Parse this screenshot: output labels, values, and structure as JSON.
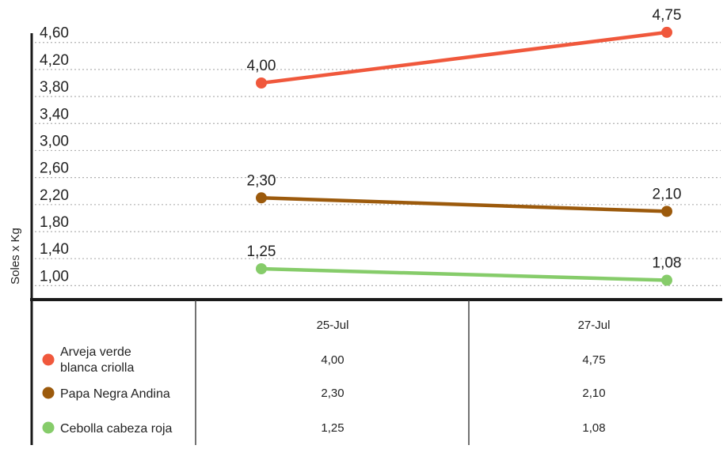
{
  "chart_data": {
    "type": "line",
    "ylabel": "Soles x Kg",
    "categories": [
      "25-Jul",
      "27-Jul"
    ],
    "y_ticks": [
      "4,60",
      "4,20",
      "3,80",
      "3,40",
      "3,00",
      "2,60",
      "2,20",
      "1,80",
      "1,40",
      "1,00"
    ],
    "y_tick_values": [
      4.6,
      4.2,
      3.8,
      3.4,
      3.0,
      2.6,
      2.2,
      1.8,
      1.4,
      1.0
    ],
    "ylim": [
      0.8,
      4.8
    ],
    "grid": true,
    "legend": "table-below",
    "series": [
      {
        "name_lines": [
          "Arveja verde",
          "blanca criolla"
        ],
        "values": [
          4.0,
          4.75
        ],
        "labels": [
          "4,00",
          "4,75"
        ],
        "color": "#f0583c"
      },
      {
        "name_lines": [
          "Papa Negra Andina"
        ],
        "values": [
          2.3,
          2.1
        ],
        "labels": [
          "2,30",
          "2,10"
        ],
        "color": "#9c5a0c"
      },
      {
        "name_lines": [
          "Cebolla cabeza roja"
        ],
        "values": [
          1.25,
          1.08
        ],
        "labels": [
          "1,25",
          "1,08"
        ],
        "color": "#86cc6a"
      }
    ]
  }
}
